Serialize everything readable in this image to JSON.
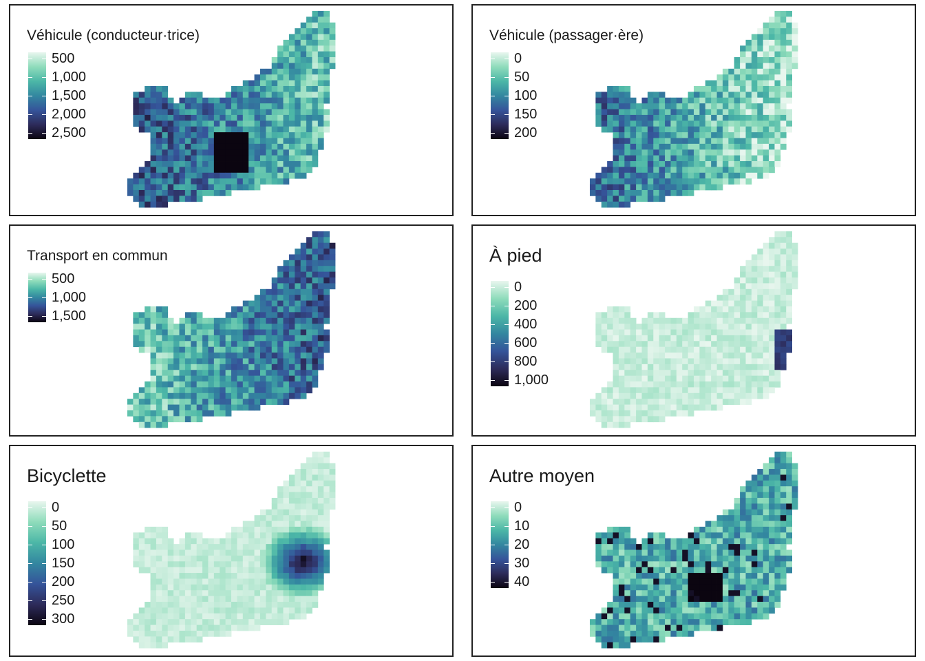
{
  "palette": {
    "stops": [
      "#e8f6ee",
      "#8fdcbb",
      "#4cb7a7",
      "#3387a0",
      "#35549a",
      "#2d2b5a",
      "#0b0510"
    ]
  },
  "panels": [
    {
      "id": "conducteur",
      "title": "Véhicule (conducteur·trice)",
      "title_size": "small",
      "ticks": [
        "500",
        "1,000",
        "1,500",
        "2,000",
        "2,500"
      ],
      "range": [
        300,
        2700
      ],
      "tick_values": [
        500,
        1000,
        1500,
        2000,
        2500
      ],
      "color_bias": 0.45
    },
    {
      "id": "passager",
      "title": "Véhicule (passager·ère)",
      "title_size": "small",
      "ticks": [
        "0",
        "50",
        "100",
        "150",
        "200"
      ],
      "range": [
        0,
        200
      ],
      "tick_values": [
        0,
        50,
        100,
        150,
        200
      ],
      "color_bias": 0.35
    },
    {
      "id": "transport",
      "title": "Transport en commun",
      "title_size": "small",
      "ticks": [
        "500",
        "1,000",
        "1,500"
      ],
      "range": [
        200,
        1700
      ],
      "tick_values": [
        500,
        1000,
        1500
      ],
      "color_bias": 0.42
    },
    {
      "id": "pied",
      "title": "À pied",
      "title_size": "large",
      "ticks": [
        "0",
        "200",
        "400",
        "600",
        "800",
        "1,000"
      ],
      "range": [
        0,
        1000
      ],
      "tick_values": [
        0,
        200,
        400,
        600,
        800,
        1000
      ],
      "color_bias": 0.08
    },
    {
      "id": "bicyclette",
      "title": "Bicyclette",
      "title_size": "large",
      "ticks": [
        "0",
        "50",
        "100",
        "150",
        "200",
        "250",
        "300"
      ],
      "range": [
        0,
        300
      ],
      "tick_values": [
        0,
        50,
        100,
        150,
        200,
        250,
        300
      ],
      "color_bias": 0.1
    },
    {
      "id": "autre",
      "title": "Autre moyen",
      "title_size": "large",
      "ticks": [
        "0",
        "10",
        "20",
        "30",
        "40"
      ],
      "range": [
        0,
        45
      ],
      "tick_values": [
        0,
        10,
        20,
        30,
        40
      ],
      "color_bias": 0.35
    }
  ]
}
